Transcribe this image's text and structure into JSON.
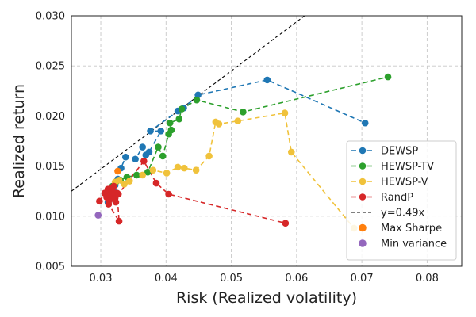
{
  "chart_data": {
    "type": "line",
    "xlabel": "Risk (Realized volatility)",
    "ylabel": "Realized return",
    "xlim": [
      0.0255,
      0.0853
    ],
    "ylim": [
      0.005,
      0.03
    ],
    "xticks": [
      0.03,
      0.04,
      0.05,
      0.06,
      0.07,
      0.08
    ],
    "yticks": [
      0.005,
      0.01,
      0.015,
      0.02,
      0.025,
      0.03
    ],
    "xtick_labels": [
      "0.03",
      "0.04",
      "0.05",
      "0.06",
      "0.07",
      "0.08"
    ],
    "ytick_labels": [
      "0.005",
      "0.010",
      "0.015",
      "0.020",
      "0.025",
      "0.030"
    ],
    "grid": true,
    "legend_position": "lower-right",
    "series": [
      {
        "name": "DEWSP",
        "color": "#1f77b4",
        "style": "dashed-line-markers",
        "x": [
          0.0311,
          0.0313,
          0.0316,
          0.0319,
          0.0322,
          0.0326,
          0.0331,
          0.0338,
          0.0353,
          0.0364,
          0.0369,
          0.0374,
          0.0392,
          0.0376,
          0.0418,
          0.0427,
          0.0449,
          0.0555,
          0.0705
        ],
        "y": [
          0.0114,
          0.0116,
          0.012,
          0.0126,
          0.0131,
          0.0137,
          0.0148,
          0.0159,
          0.0157,
          0.0169,
          0.0161,
          0.0164,
          0.0185,
          0.0185,
          0.0205,
          0.0208,
          0.0221,
          0.0236,
          0.0193
        ]
      },
      {
        "name": "HEWSP-TV",
        "color": "#2ca02c",
        "style": "dashed-line-markers",
        "x": [
          0.0314,
          0.0318,
          0.0323,
          0.033,
          0.034,
          0.0355,
          0.0372,
          0.0388,
          0.0395,
          0.0404,
          0.0408,
          0.0406,
          0.042,
          0.0424,
          0.0447,
          0.0518,
          0.074
        ],
        "y": [
          0.0126,
          0.013,
          0.0134,
          0.0136,
          0.0139,
          0.0141,
          0.0144,
          0.0169,
          0.016,
          0.0182,
          0.0186,
          0.0193,
          0.0197,
          0.0207,
          0.0216,
          0.0204,
          0.0239
        ]
      },
      {
        "name": "HEWSP-V",
        "color": "#f0c23b",
        "style": "dashed-line-markers",
        "x": [
          0.0322,
          0.0328,
          0.0336,
          0.0344,
          0.0364,
          0.038,
          0.0401,
          0.0418,
          0.0428,
          0.0446,
          0.0466,
          0.0476,
          0.0481,
          0.051,
          0.0582,
          0.0592,
          0.0688
        ],
        "y": [
          0.0134,
          0.0136,
          0.0132,
          0.0135,
          0.0141,
          0.0146,
          0.0143,
          0.0149,
          0.0148,
          0.0146,
          0.016,
          0.0194,
          0.0192,
          0.0195,
          0.0203,
          0.0164,
          0.0088
        ]
      },
      {
        "name": "RandP",
        "color": "#d62728",
        "style": "dashed-line-markers",
        "x": [
          0.0298,
          0.0306,
          0.0309,
          0.0311,
          0.0313,
          0.0315,
          0.0317,
          0.032,
          0.0322,
          0.0325,
          0.0328,
          0.0312,
          0.0316,
          0.0319,
          0.0323,
          0.0327,
          0.0366,
          0.0385,
          0.0404,
          0.0583
        ],
        "y": [
          0.0115,
          0.0123,
          0.0119,
          0.0127,
          0.0116,
          0.0121,
          0.0125,
          0.013,
          0.0118,
          0.0123,
          0.0095,
          0.0112,
          0.0128,
          0.0124,
          0.0114,
          0.0122,
          0.0155,
          0.0133,
          0.0122,
          0.0093
        ]
      },
      {
        "name": "y=0.49x",
        "color": "#000000",
        "style": "dashed-line",
        "slope": 0.49
      },
      {
        "name": "Max Sharpe",
        "color": "#ff7f0e",
        "style": "marker",
        "x": [
          0.0326
        ],
        "y": [
          0.0145
        ]
      },
      {
        "name": "Min variance",
        "color": "#9467bd",
        "style": "marker",
        "x": [
          0.0296
        ],
        "y": [
          0.0101
        ]
      }
    ]
  }
}
